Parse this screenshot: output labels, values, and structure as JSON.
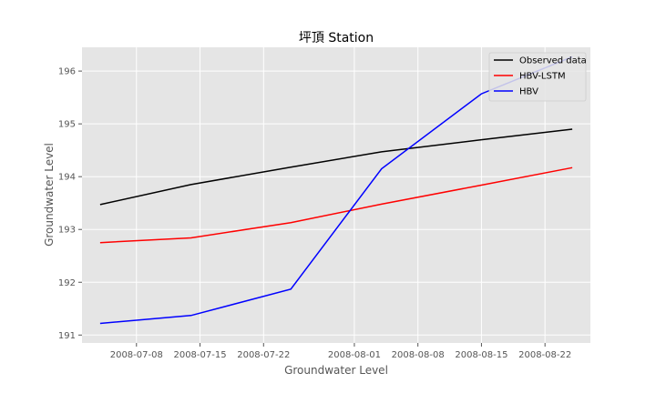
{
  "chart_data": {
    "type": "line",
    "title": "坪頂 Station",
    "xlabel": "Groundwater Level",
    "ylabel": "Groundwater Level",
    "x": [
      "2008-07-04",
      "2008-07-14",
      "2008-07-25",
      "2008-08-04",
      "2008-08-15",
      "2008-08-25"
    ],
    "xlim": [
      "2008-07-02",
      "2008-08-27"
    ],
    "ylim": [
      190.85,
      196.45
    ],
    "xticks": [
      "2008-07-08",
      "2008-07-15",
      "2008-07-22",
      "2008-08-01",
      "2008-08-08",
      "2008-08-15",
      "2008-08-22"
    ],
    "yticks": [
      191,
      192,
      193,
      194,
      195,
      196
    ],
    "grid": true,
    "legend_position": "upper right",
    "series": [
      {
        "name": "Observed data",
        "color": "#000000",
        "values": [
          193.47,
          193.85,
          194.18,
          194.47,
          194.7,
          194.9
        ]
      },
      {
        "name": "HBV-LSTM",
        "color": "#ff0000",
        "values": [
          192.75,
          192.84,
          193.13,
          193.48,
          193.84,
          194.17
        ]
      },
      {
        "name": "HBV",
        "color": "#0000ff",
        "values": [
          191.22,
          191.37,
          191.87,
          194.15,
          195.57,
          196.27
        ]
      }
    ]
  }
}
